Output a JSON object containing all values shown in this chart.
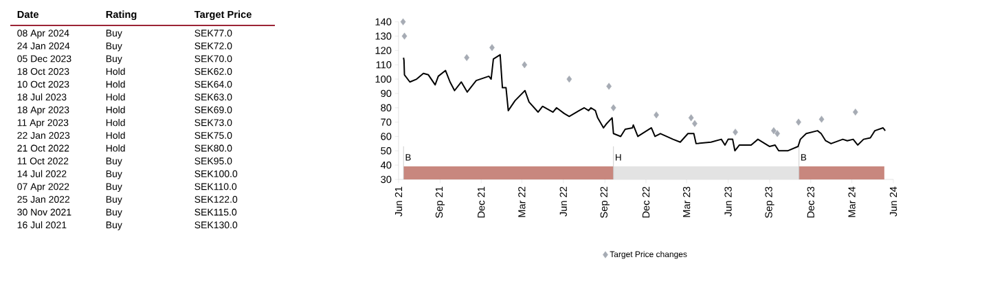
{
  "chart_data": [
    {
      "type": "other",
      "categories": [
        "Date",
        "Rating",
        "Target Price"
      ],
      "annotations": [
        "08 Apr 2024",
        "Buy",
        "SEK77.0",
        "24 Jan 2024",
        "Buy",
        "SEK72.0",
        "05 Dec 2023",
        "Buy",
        "SEK70.0",
        "18 Oct 2023",
        "Hold",
        "SEK62.0",
        "10 Oct 2023",
        "Hold",
        "SEK64.0",
        "18 Jul 2023",
        "Hold",
        "SEK63.0",
        "18 Apr 2023",
        "Hold",
        "SEK69.0",
        "11 Apr 2023",
        "Hold",
        "SEK73.0",
        "22 Jan 2023",
        "Hold",
        "SEK75.0",
        "21 Oct 2022",
        "Hold",
        "SEK80.0",
        "11 Oct 2022",
        "Buy",
        "SEK95.0",
        "14 Jul 2022",
        "Buy",
        "SEK100.0",
        "07 Apr 2022",
        "Buy",
        "SEK110.0",
        "25 Jan 2022",
        "Buy",
        "SEK122.0",
        "30 Nov 2021",
        "Buy",
        "SEK115.0",
        "16 Jul 2021",
        "Buy",
        "SEK130.0"
      ]
    },
    {
      "type": "line",
      "legend": "bottom",
      "ylim": [
        30,
        140
      ],
      "yticks": [
        30,
        40,
        50,
        60,
        70,
        80,
        90,
        100,
        110,
        120,
        130,
        140
      ],
      "xlim": [
        "2021-06-01",
        "2024-06-01"
      ],
      "xticks": [
        {
          "value": "2021-06-01",
          "label": "Jun 21"
        },
        {
          "value": "2021-09-01",
          "label": "Sep 21"
        },
        {
          "value": "2021-12-01",
          "label": "Dec 21"
        },
        {
          "value": "2022-03-01",
          "label": "Mar 22"
        },
        {
          "value": "2022-06-01",
          "label": "Jun 22"
        },
        {
          "value": "2022-09-01",
          "label": "Sep 22"
        },
        {
          "value": "2022-12-01",
          "label": "Dec 22"
        },
        {
          "value": "2023-03-01",
          "label": "Mar 23"
        },
        {
          "value": "2023-06-01",
          "label": "Jun 23"
        },
        {
          "value": "2023-09-01",
          "label": "Sep 23"
        },
        {
          "value": "2023-12-01",
          "label": "Dec 23"
        },
        {
          "value": "2024-03-01",
          "label": "Mar 24"
        },
        {
          "value": "2024-06-01",
          "label": "Jun 24"
        }
      ],
      "bands": [
        {
          "axis": "x",
          "from": "2021-06-12",
          "to": "2022-09-20",
          "label": "B",
          "color": "#c8877e"
        },
        {
          "axis": "x",
          "from": "2022-09-20",
          "to": "2023-11-05",
          "label": "H",
          "color": "#e3e3e3"
        },
        {
          "axis": "x",
          "from": "2023-11-05",
          "to": "2024-05-12",
          "label": "B",
          "color": "#c8877e"
        }
      ],
      "series": [
        {
          "type": "line",
          "color": "#000000",
          "x": [
            "2021-06-12",
            "2021-06-13",
            "2021-06-14",
            "2021-06-26",
            "2021-07-11",
            "2021-07-26",
            "2021-08-06",
            "2021-08-21",
            "2021-08-28",
            "2021-09-13",
            "2021-09-23",
            "2021-10-03",
            "2021-10-18",
            "2021-10-31",
            "2021-11-20",
            "2021-12-18",
            "2021-12-23",
            "2021-12-28",
            "2022-01-12",
            "2022-01-17",
            "2022-01-25",
            "2022-01-30",
            "2022-02-14",
            "2022-03-08",
            "2022-03-17",
            "2022-04-06",
            "2022-04-16",
            "2022-05-09",
            "2022-05-17",
            "2022-06-03",
            "2022-06-14",
            "2022-07-06",
            "2022-07-17",
            "2022-07-27",
            "2022-08-01",
            "2022-08-11",
            "2022-08-16",
            "2022-08-29",
            "2022-09-05",
            "2022-09-17",
            "2022-09-20",
            "2022-10-06",
            "2022-10-16",
            "2022-11-01",
            "2022-11-03",
            "2022-11-13",
            "2022-12-13",
            "2022-12-21",
            "2023-01-02",
            "2023-01-30",
            "2023-02-15",
            "2023-03-04",
            "2023-03-17",
            "2023-03-22",
            "2023-04-24",
            "2023-05-17",
            "2023-05-25",
            "2023-06-01",
            "2023-06-11",
            "2023-06-16",
            "2023-06-26",
            "2023-07-22",
            "2023-08-06",
            "2023-09-01",
            "2023-09-13",
            "2023-09-21",
            "2023-10-11",
            "2023-11-03",
            "2023-11-08",
            "2023-11-21",
            "2023-12-16",
            "2023-12-24",
            "2024-01-03",
            "2024-01-15",
            "2024-02-10",
            "2024-02-20",
            "2024-03-04",
            "2024-03-14",
            "2024-03-27",
            "2024-04-11",
            "2024-04-21",
            "2024-05-09",
            "2024-05-14"
          ],
          "values": [
            115,
            113,
            103,
            98,
            100,
            104,
            103,
            96,
            102,
            106,
            98,
            92,
            98,
            91,
            99,
            102,
            100,
            114,
            117,
            94,
            94,
            78,
            85,
            92,
            84,
            77,
            81,
            77,
            80,
            76,
            74,
            78,
            80,
            78,
            80,
            78,
            73,
            66,
            69,
            73,
            62,
            60,
            65,
            66,
            68,
            60,
            66,
            60,
            62,
            58,
            56,
            62,
            62,
            55,
            56,
            58,
            54,
            58,
            58,
            50,
            54,
            54,
            58,
            53,
            54,
            50,
            50,
            53,
            58,
            62,
            64,
            62,
            57,
            55,
            58,
            57,
            58,
            54,
            58,
            59,
            64,
            66,
            64
          ]
        },
        {
          "type": "scatter",
          "name": "Target Price changes",
          "color": "#a6abb4",
          "marker": "diamond",
          "x": [
            "2021-06-11",
            "2021-06-14",
            "2021-10-30",
            "2021-12-25",
            "2022-03-07",
            "2022-06-14",
            "2022-09-10",
            "2022-09-20",
            "2022-12-24",
            "2023-03-11",
            "2023-03-19",
            "2023-06-17",
            "2023-09-10",
            "2023-09-18",
            "2023-11-04",
            "2023-12-25",
            "2024-03-09"
          ],
          "values": [
            140,
            130,
            115,
            122,
            110,
            100,
            95,
            80,
            75,
            73,
            69,
            63,
            64,
            62,
            70,
            72,
            77
          ]
        }
      ]
    }
  ]
}
